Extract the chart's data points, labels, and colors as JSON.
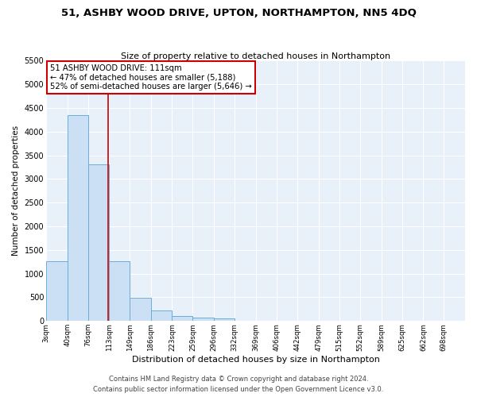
{
  "title_line1": "51, ASHBY WOOD DRIVE, UPTON, NORTHAMPTON, NN5 4DQ",
  "title_line2": "Size of property relative to detached houses in Northampton",
  "xlabel": "Distribution of detached houses by size in Northampton",
  "ylabel": "Number of detached properties",
  "bar_color": "#cce0f5",
  "bar_edge_color": "#6aaed6",
  "background_color": "#e8f0fa",
  "grid_color": "#ffffff",
  "annotation_box_color": "#ffffff",
  "annotation_border_color": "#cc0000",
  "vline_color": "#cc0000",
  "footer_line1": "Contains HM Land Registry data © Crown copyright and database right 2024.",
  "footer_line2": "Contains public sector information licensed under the Open Government Licence v3.0.",
  "annotation_line1": "51 ASHBY WOOD DRIVE: 111sqm",
  "annotation_line2": "← 47% of detached houses are smaller (5,188)",
  "annotation_line3": "52% of semi-detached houses are larger (5,646) →",
  "property_size": 111,
  "bin_edges": [
    3,
    40,
    76,
    113,
    149,
    186,
    223,
    259,
    296,
    332,
    369,
    406,
    442,
    479,
    515,
    552,
    589,
    625,
    662,
    698,
    735
  ],
  "bar_heights": [
    1270,
    4350,
    3300,
    1270,
    490,
    220,
    100,
    75,
    55,
    0,
    0,
    0,
    0,
    0,
    0,
    0,
    0,
    0,
    0,
    0
  ],
  "xlim": [
    3,
    735
  ],
  "ylim": [
    0,
    5500
  ],
  "yticks": [
    0,
    500,
    1000,
    1500,
    2000,
    2500,
    3000,
    3500,
    4000,
    4500,
    5000,
    5500
  ],
  "figsize": [
    6.0,
    5.0
  ],
  "dpi": 100
}
